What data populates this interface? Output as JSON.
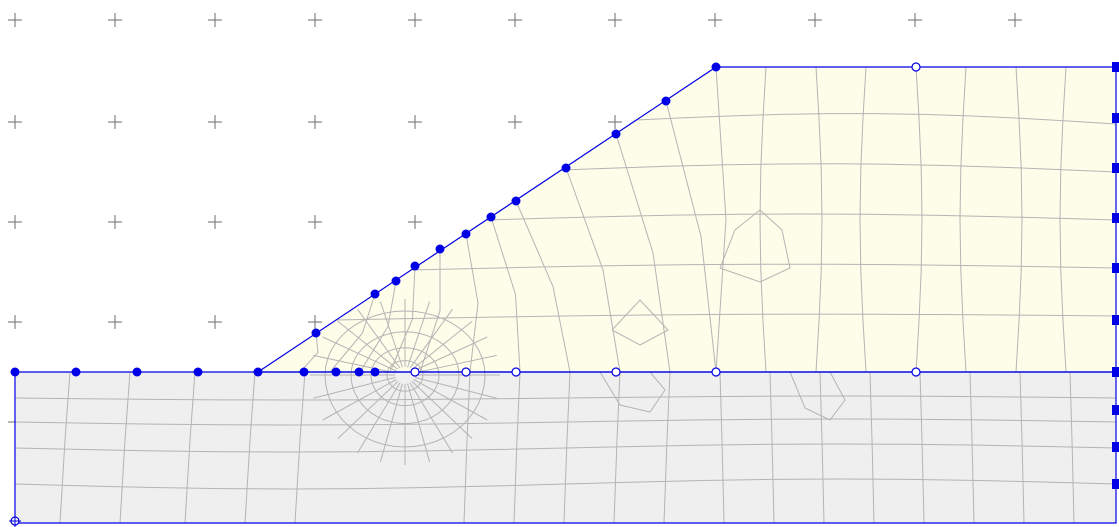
{
  "colors": {
    "background": "#ffffff",
    "embankment_fill": "#fdfdea",
    "foundation_fill": "#efefef",
    "mesh_line": "#b4b4b4",
    "boundary": "#0000e6",
    "node": "#0000e6",
    "grid_marker": "#6e6e6e"
  },
  "icons": {
    "grid_marker": "plus-marker-icon",
    "node_filled": "filled-node-icon",
    "node_open": "open-node-icon",
    "node_square": "square-node-icon"
  }
}
